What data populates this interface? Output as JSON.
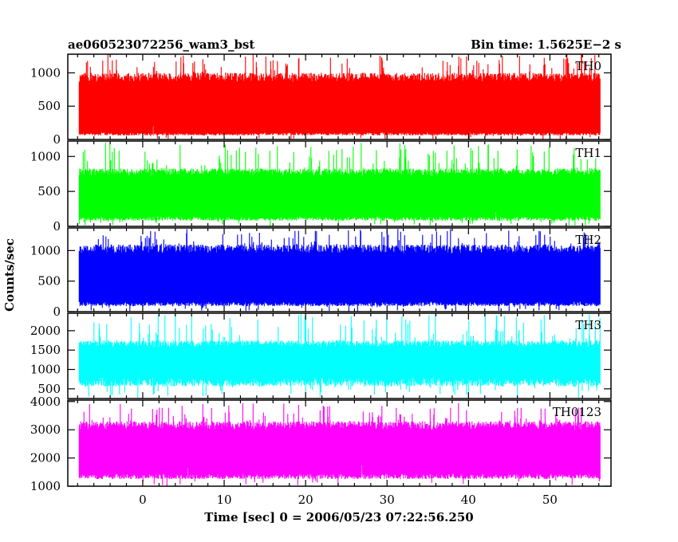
{
  "chart_data": {
    "type": "line",
    "title_left": "ae060523072256_wam3_bst",
    "title_right": "Bin time: 1.5625E−2 s",
    "xlabel": "Time [sec] 0 = 2006/05/23 07:22:56.250",
    "ylabel": "Counts/sec",
    "xlim": [
      -9.2,
      57.5
    ],
    "data_xrange": [
      -7.8,
      56.2
    ],
    "x_ticks": [
      0,
      10,
      20,
      30,
      40,
      50
    ],
    "x_tick_labels": [
      "0",
      "10",
      "20",
      "30",
      "40",
      "50"
    ],
    "grid": false,
    "series": [
      {
        "name": "TH0",
        "color": "#ff0000",
        "ylim": [
          0,
          1280
        ],
        "y_ticks": [
          0,
          500,
          1000
        ],
        "y_tick_labels": [
          "0",
          "500",
          "1000"
        ],
        "typical_min": 60,
        "typical_max": 1000,
        "lower_spike_max": 230,
        "peak": 1280
      },
      {
        "name": "TH1",
        "color": "#00ff00",
        "ylim": [
          0,
          1220
        ],
        "y_ticks": [
          0,
          500,
          1000
        ],
        "y_tick_labels": [
          "0",
          "500",
          "1000"
        ],
        "typical_min": 80,
        "typical_max": 830,
        "lower_spike_max": 220,
        "peak": 1200
      },
      {
        "name": "TH2",
        "color": "#0000ff",
        "ylim": [
          0,
          1370
        ],
        "y_ticks": [
          0,
          500,
          1000
        ],
        "y_tick_labels": [
          "0",
          "500",
          "1000"
        ],
        "typical_min": 90,
        "typical_max": 1100,
        "lower_spike_max": 300,
        "peak": 1360
      },
      {
        "name": "TH3",
        "color": "#00ffff",
        "ylim": [
          250,
          2450
        ],
        "y_ticks": [
          500,
          1000,
          1500,
          2000
        ],
        "y_tick_labels": [
          "500",
          "1000",
          "1500",
          "2000"
        ],
        "typical_min": 560,
        "typical_max": 1750,
        "lower_spike_max": 800,
        "peak": 2450
      },
      {
        "name": "TH0123",
        "color": "#ff00ff",
        "ylim": [
          1000,
          4050
        ],
        "y_ticks": [
          1000,
          2000,
          3000,
          4000
        ],
        "y_tick_labels": [
          "1000",
          "2000",
          "3000",
          "4000"
        ],
        "typical_min": 1250,
        "typical_max": 3300,
        "lower_spike_max": 1900,
        "peak": 3950
      }
    ]
  }
}
